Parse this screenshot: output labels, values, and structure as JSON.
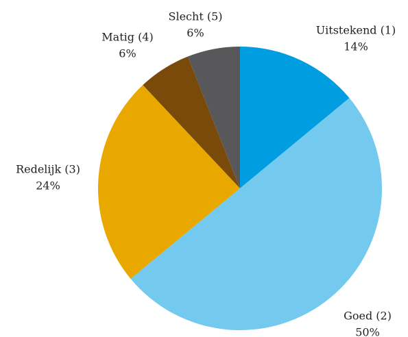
{
  "chart_data": {
    "type": "pie",
    "categories": [
      "Uitstekend (1)",
      "Goed (2)",
      "Redelijk (3)",
      "Matig (4)",
      "Slecht (5)"
    ],
    "values": [
      14,
      50,
      24,
      6,
      6
    ],
    "value_labels": [
      "14%",
      "50%",
      "24%",
      "6%",
      "6%"
    ],
    "colors": [
      "#009ee0",
      "#74c9ef",
      "#e8a800",
      "#7a4a0a",
      "#58585a"
    ]
  }
}
